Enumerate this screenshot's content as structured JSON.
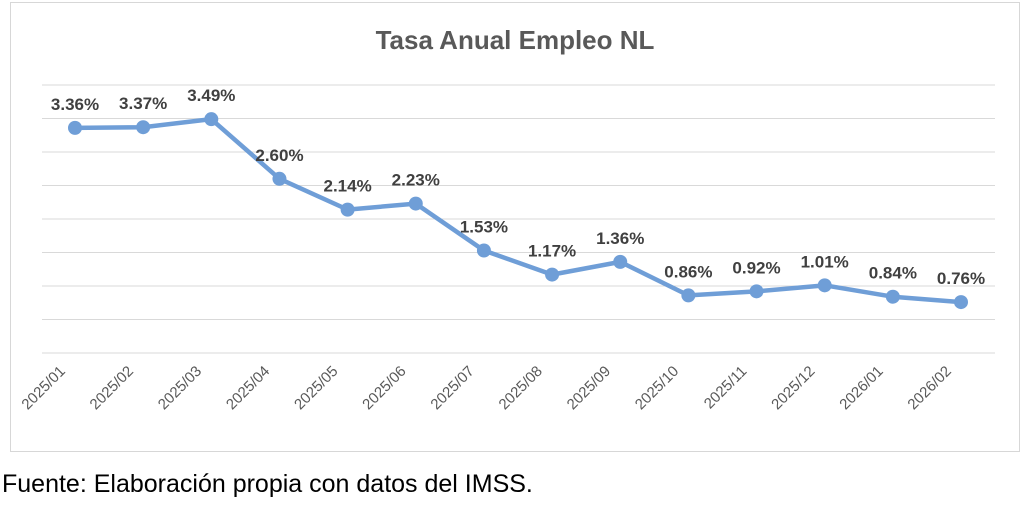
{
  "chart_data": {
    "type": "line",
    "title": "Tasa Anual Empleo NL",
    "categories": [
      "2025/01",
      "2025/02",
      "2025/03",
      "2025/04",
      "2025/05",
      "2025/06",
      "2025/07",
      "2025/08",
      "2025/09",
      "2025/10",
      "2025/11",
      "2025/12",
      "2026/01",
      "2026/02"
    ],
    "values": [
      3.36,
      3.37,
      3.49,
      2.6,
      2.14,
      2.23,
      1.53,
      1.17,
      1.36,
      0.86,
      0.92,
      1.01,
      0.84,
      0.76
    ],
    "point_labels": [
      "3.36%",
      "3.37%",
      "3.49%",
      "2.60%",
      "2.14%",
      "2.23%",
      "1.53%",
      "1.17%",
      "1.36%",
      "0.86%",
      "0.92%",
      "1.01%",
      "0.84%",
      "0.76%"
    ],
    "xlabel": "",
    "ylabel": "",
    "ylim": [
      0,
      4
    ],
    "gridline_step": 0.5,
    "grid": true,
    "y_axis_labels_visible": false,
    "legend_position": "none",
    "marker": "circle",
    "colors": {
      "line": "#6f9ed7",
      "marker": "#6f9ed7",
      "data_label": "#404040",
      "axis_text": "#595959",
      "gridline": "#d9d9d9",
      "title": "#595959",
      "frame_border": "#d7d7d7",
      "background": "#ffffff"
    }
  },
  "footer": {
    "source": "Fuente: Elaboración propia con datos del IMSS."
  }
}
